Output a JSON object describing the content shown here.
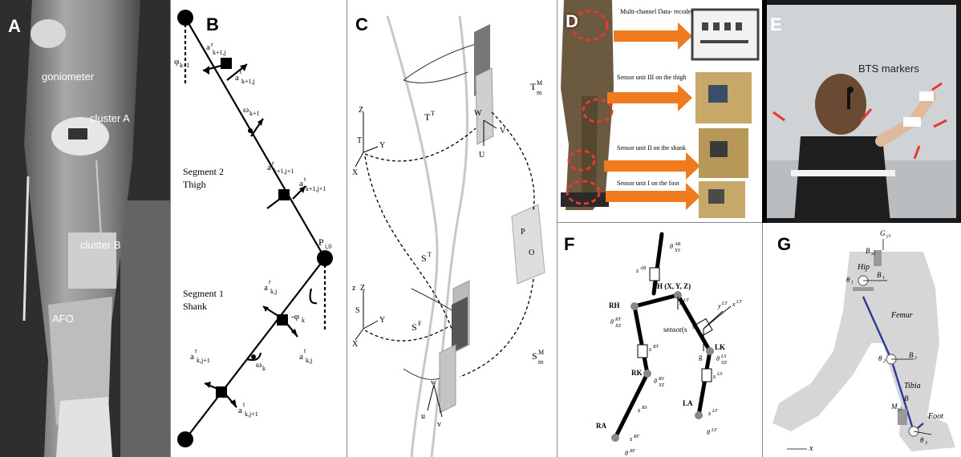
{
  "panels": {
    "A": {
      "letter": "A",
      "labels": {
        "goniometer": "goniometer",
        "cluster_a": "cluster A",
        "cluster_b": "cluster B",
        "afo": "AFO"
      }
    },
    "B": {
      "letter": "B",
      "segment2_line1": "Segment 2",
      "segment2_line2": "Thigh",
      "segment1_line1": "Segment 1",
      "segment1_line2": "Shank",
      "point": "P",
      "point_sub": "i,0"
    },
    "C": {
      "letter": "C"
    },
    "D": {
      "letter": "D",
      "rows": [
        {
          "text": "Multi-channel Data- recoder"
        },
        {
          "text": "Sensor unit III  on the thigh"
        },
        {
          "text": "Sensor unit II  on the shank"
        },
        {
          "text": "Sensor unit I  on the foot"
        }
      ]
    },
    "E": {
      "letter": "E",
      "markers_label": "BTS markers"
    },
    "F": {
      "letter": "F",
      "lh_label": "LH (X, Y, Z)",
      "rh": "RH",
      "lk": "LK",
      "rk": "RK",
      "la": "LA",
      "ra": "RA",
      "sensor_label": "sensor(s",
      "sensor_sup": "LT",
      "g": "g"
    },
    "G": {
      "letter": "G",
      "hip": "Hip",
      "femur": "Femur",
      "tibia": "Tibia",
      "foot": "Foot",
      "x": "x"
    }
  },
  "colors": {
    "arrow_orange": "#f07a1e",
    "marker_red": "#e53a2e",
    "link_blue": "#2a3a9a",
    "silhouette": "#d6d6d6"
  }
}
